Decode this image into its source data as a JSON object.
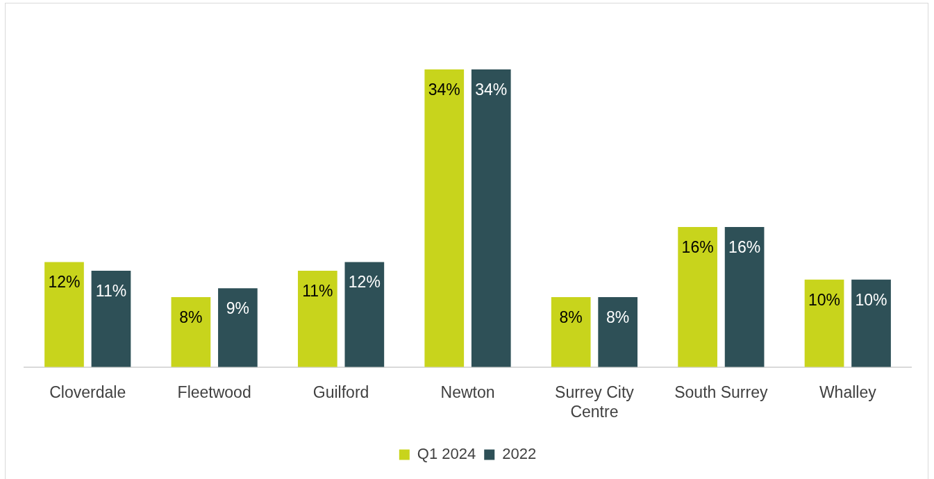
{
  "chart_data": {
    "type": "bar",
    "categories": [
      "Cloverdale",
      "Fleetwood",
      "Guilford",
      "Newton",
      "Surrey City Centre",
      "South Surrey",
      "Whalley"
    ],
    "series": [
      {
        "name": "Q1 2024",
        "color": "#c8d41c",
        "values": [
          12,
          8,
          11,
          34,
          8,
          16,
          10
        ],
        "value_labels": [
          "12%",
          "8%",
          "11%",
          "34%",
          "8%",
          "16%",
          "10%"
        ]
      },
      {
        "name": "2022",
        "color": "#2e5057",
        "values": [
          11,
          9,
          12,
          34,
          8,
          16,
          10
        ],
        "value_labels": [
          "11%",
          "9%",
          "12%",
          "34%",
          "8%",
          "16%",
          "10%"
        ]
      }
    ],
    "legend": "bottom",
    "grid": false
  }
}
